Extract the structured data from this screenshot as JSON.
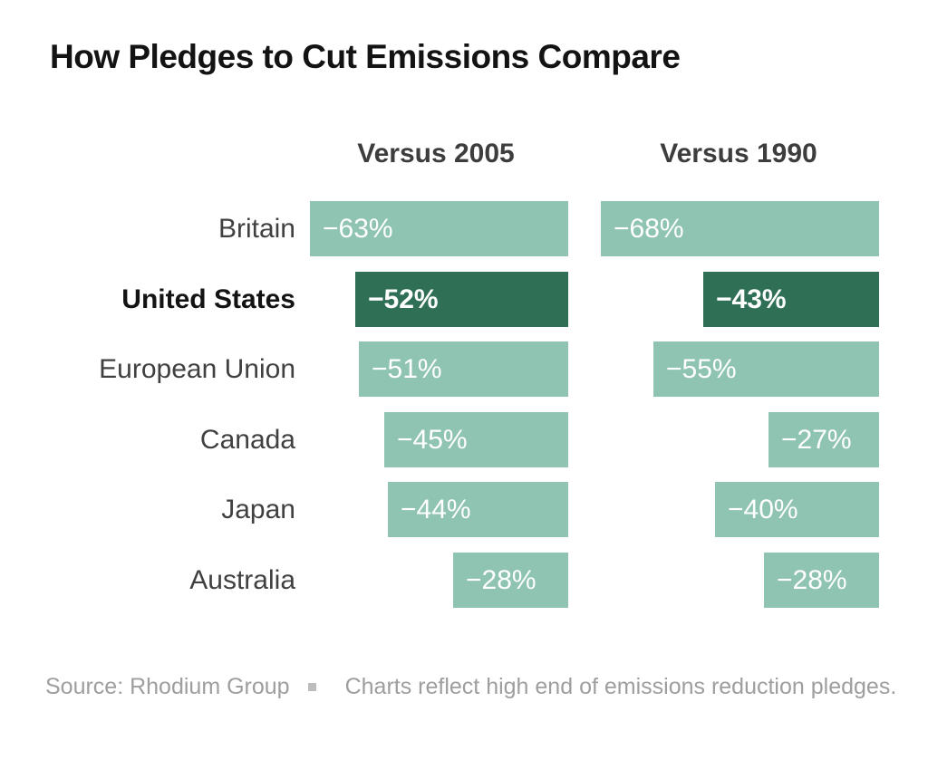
{
  "title": "How Pledges to Cut Emissions Compare",
  "columns": [
    {
      "label": "Versus 2005"
    },
    {
      "label": "Versus 1990"
    }
  ],
  "rows": [
    {
      "country": "Britain",
      "highlight": false,
      "values": [
        -63,
        -68
      ],
      "labels": [
        "−63%",
        "−68%"
      ]
    },
    {
      "country": "United States",
      "highlight": true,
      "values": [
        -52,
        -43
      ],
      "labels": [
        "−52%",
        "−43%"
      ]
    },
    {
      "country": "European Union",
      "highlight": false,
      "values": [
        -51,
        -55
      ],
      "labels": [
        "−51%",
        "−55%"
      ]
    },
    {
      "country": "Canada",
      "highlight": false,
      "values": [
        -45,
        -27
      ],
      "labels": [
        "−45%",
        "−27%"
      ]
    },
    {
      "country": "Japan",
      "highlight": false,
      "values": [
        -44,
        -40
      ],
      "labels": [
        "−44%",
        "−40%"
      ]
    },
    {
      "country": "Australia",
      "highlight": false,
      "values": [
        -28,
        -28
      ],
      "labels": [
        "−28%",
        "−28%"
      ]
    }
  ],
  "footer": {
    "source": "Source: Rhodium Group",
    "note": "Charts reflect high end of emissions reduction pledges."
  },
  "colors": {
    "bar": "#8fc4b3",
    "bar_highlight": "#2e6f56",
    "bar_value_text": "#ffffff",
    "label_text": "#404040",
    "header_text": "#3d3d3d",
    "title_text": "#131313",
    "footer_text": "#9e9e9e",
    "footer_bullet": "#bdbdbd"
  },
  "chart_data": {
    "type": "bar",
    "orientation": "horizontal",
    "title": "How Pledges to Cut Emissions Compare",
    "categories": [
      "Britain",
      "United States",
      "European Union",
      "Canada",
      "Japan",
      "Australia"
    ],
    "series": [
      {
        "name": "Versus 2005",
        "values": [
          -63,
          -52,
          -51,
          -45,
          -44,
          -28
        ]
      },
      {
        "name": "Versus 1990",
        "values": [
          -68,
          -43,
          -55,
          -27,
          -40,
          -28
        ]
      }
    ],
    "value_labels": {
      "Versus 2005": [
        "−63%",
        "−52%",
        "−51%",
        "−45%",
        "−44%",
        "−28%"
      ],
      "Versus 1990": [
        "−68%",
        "−43%",
        "−55%",
        "−27%",
        "−40%",
        "−28%"
      ]
    },
    "highlight_category": "United States",
    "xlim": [
      -70,
      0
    ],
    "grid": false,
    "legend_position": "column-headers",
    "bars_right_aligned_at_zero": true,
    "note": "Charts reflect high end of emissions reduction pledges.",
    "source": "Source: Rhodium Group"
  }
}
